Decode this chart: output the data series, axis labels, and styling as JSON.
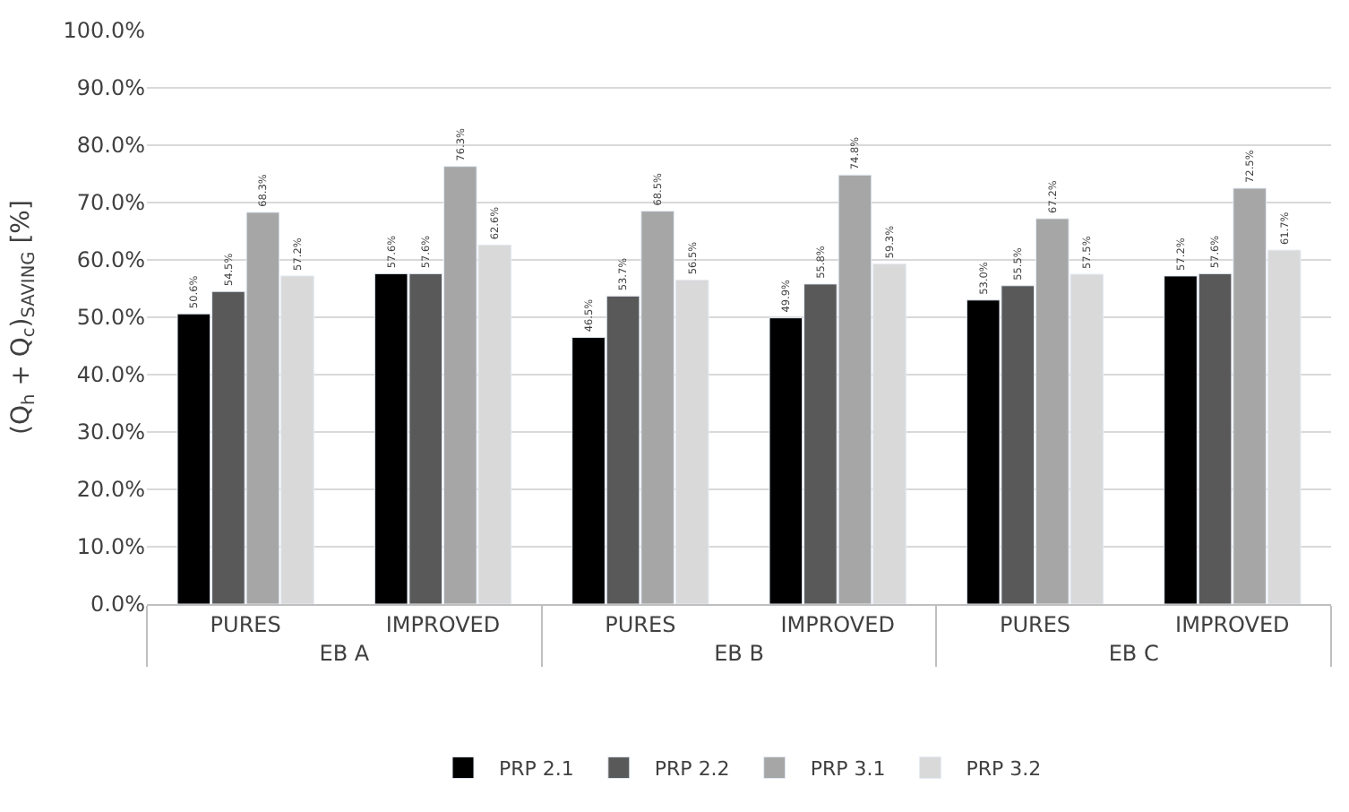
{
  "chart_data": {
    "type": "bar",
    "ylabel": "(Q$_{h}$ + Q$_{c}$)$_{SAVING}$ [%]",
    "categories": [
      "PURES",
      "IMPROVED",
      "PURES",
      "IMPROVED",
      "PURES",
      "IMPROVED"
    ],
    "annotations": [
      "EB A",
      "EB B",
      "EB C"
    ],
    "series": [
      {
        "name": "PRP 2.1",
        "color": "#000000",
        "values": [
          50.6,
          57.6,
          46.5,
          49.9,
          53.0,
          57.2
        ],
        "value_labels": [
          "50.6%",
          "57.6%",
          "46.5%",
          "49.9%",
          "53.0%",
          "57.2%"
        ]
      },
      {
        "name": "PRP 2.2",
        "color": "#595959",
        "values": [
          54.5,
          57.6,
          53.7,
          55.8,
          55.5,
          57.6
        ],
        "value_labels": [
          "54.5%",
          "57.6%",
          "53.7%",
          "55.8%",
          "55.5%",
          "57.6%"
        ]
      },
      {
        "name": "PRP 3.1",
        "color": "#a6a6a6",
        "values": [
          68.3,
          76.3,
          68.5,
          74.8,
          67.2,
          72.5
        ],
        "value_labels": [
          "68.3%",
          "76.3%",
          "68.5%",
          "74.8%",
          "67.2%",
          "72.5%"
        ]
      },
      {
        "name": "PRP 3.2",
        "color": "#d9d9d9",
        "values": [
          57.2,
          62.6,
          56.5,
          59.3,
          57.5,
          61.7
        ],
        "value_labels": [
          "57.2%",
          "62.6%",
          "56.5%",
          "59.3%",
          "57.5%",
          "61.7%"
        ]
      }
    ],
    "ylim": [
      0,
      100
    ],
    "yticks": [
      {
        "value": 0,
        "label": "0.0%"
      },
      {
        "value": 10,
        "label": "10.0%"
      },
      {
        "value": 20,
        "label": "20.0%"
      },
      {
        "value": 30,
        "label": "30.0%"
      },
      {
        "value": 40,
        "label": "40.0%"
      },
      {
        "value": 50,
        "label": "50.0%"
      },
      {
        "value": 60,
        "label": "60.0%"
      },
      {
        "value": 70,
        "label": "70.0%"
      },
      {
        "value": 80,
        "label": "80.0%"
      },
      {
        "value": 90,
        "label": "90.0%"
      },
      {
        "value": 100,
        "label": "100.0%"
      }
    ],
    "grid": "y",
    "legend": "bottom"
  }
}
